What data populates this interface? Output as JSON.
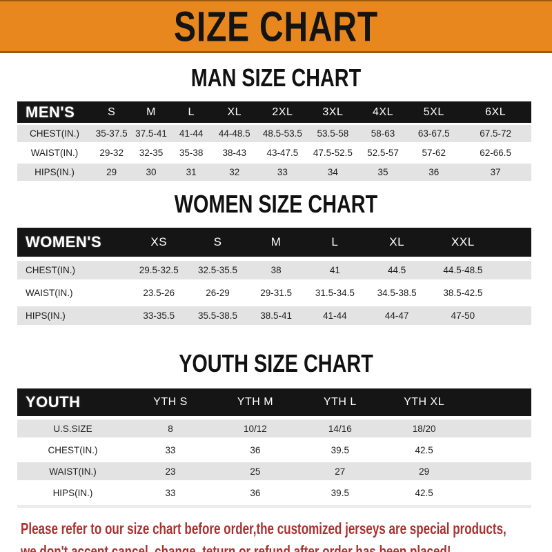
{
  "banner": {
    "title": "SIZE CHART"
  },
  "colors": {
    "page-bg": "#ffffff",
    "banner-orange": "#E8871E",
    "banner-edge": "#9a5d10",
    "bar-black": "#151515",
    "row-gray": "#E3E3E3",
    "row-white": "#ffffff",
    "text-dark": "#1e1e1e",
    "note-red": "#A93230"
  },
  "sections": {
    "men": {
      "title": "MAN SIZE CHART",
      "header": {
        "label": "MEN'S",
        "sizes": [
          "S",
          "M",
          "L",
          "XL",
          "2XL",
          "3XL",
          "4XL",
          "5XL",
          "6XL"
        ]
      },
      "rows": [
        {
          "label": "CHEST(IN.)",
          "values": [
            "35-37.5",
            "37.5-41",
            "41-44",
            "44-48.5",
            "48.5-53.5",
            "53.5-58",
            "58-63",
            "63-67.5",
            "67.5-72"
          ]
        },
        {
          "label": "WAIST(IN.)",
          "values": [
            "29-32",
            "32-35",
            "35-38",
            "38-43",
            "43-47.5",
            "47.5-52.5",
            "52.5-57",
            "57-62",
            "62-66.5"
          ]
        },
        {
          "label": "HIPS(IN.)",
          "values": [
            "29",
            "30",
            "31",
            "32",
            "33",
            "34",
            "35",
            "36",
            "37"
          ]
        }
      ]
    },
    "women": {
      "title": "WOMEN SIZE CHART",
      "header": {
        "label": "WOMEN'S",
        "sizes": [
          "XS",
          "S",
          "M",
          "L",
          "XL",
          "XXL"
        ]
      },
      "rows": [
        {
          "label": "CHEST(IN.)",
          "values": [
            "29.5-32.5",
            "32.5-35.5",
            "38",
            "41",
            "44.5",
            "44.5-48.5"
          ]
        },
        {
          "label": "WAIST(IN.)",
          "values": [
            "23.5-26",
            "26-29",
            "29-31.5",
            "31.5-34.5",
            "34.5-38.5",
            "38.5-42.5"
          ]
        },
        {
          "label": "HIPS(IN.)",
          "values": [
            "33-35.5",
            "35.5-38.5",
            "38.5-41",
            "41-44",
            "44-47",
            "47-50"
          ]
        }
      ]
    },
    "youth": {
      "title": "YOUTH SIZE CHART",
      "header": {
        "label": "YOUTH",
        "sizes": [
          "YTH S",
          "YTH M",
          "YTH L",
          "YTH XL"
        ]
      },
      "rows": [
        {
          "label": "U.S.SIZE",
          "values": [
            "8",
            "10/12",
            "14/16",
            "18/20"
          ]
        },
        {
          "label": "CHEST(IN.)",
          "values": [
            "33",
            "36",
            "39.5",
            "42.5"
          ]
        },
        {
          "label": "WAIST(IN.)",
          "values": [
            "23",
            "25",
            "27",
            "29"
          ]
        },
        {
          "label": "HIPS(IN.)",
          "values": [
            "33",
            "36",
            "39.5",
            "42.5"
          ]
        }
      ]
    }
  },
  "footer": {
    "line1": "Please refer to our size chart before order,the customized jerseys are special products,",
    "line2": "we don't accept cancel, change, teturn or refund after order has been placed!"
  }
}
